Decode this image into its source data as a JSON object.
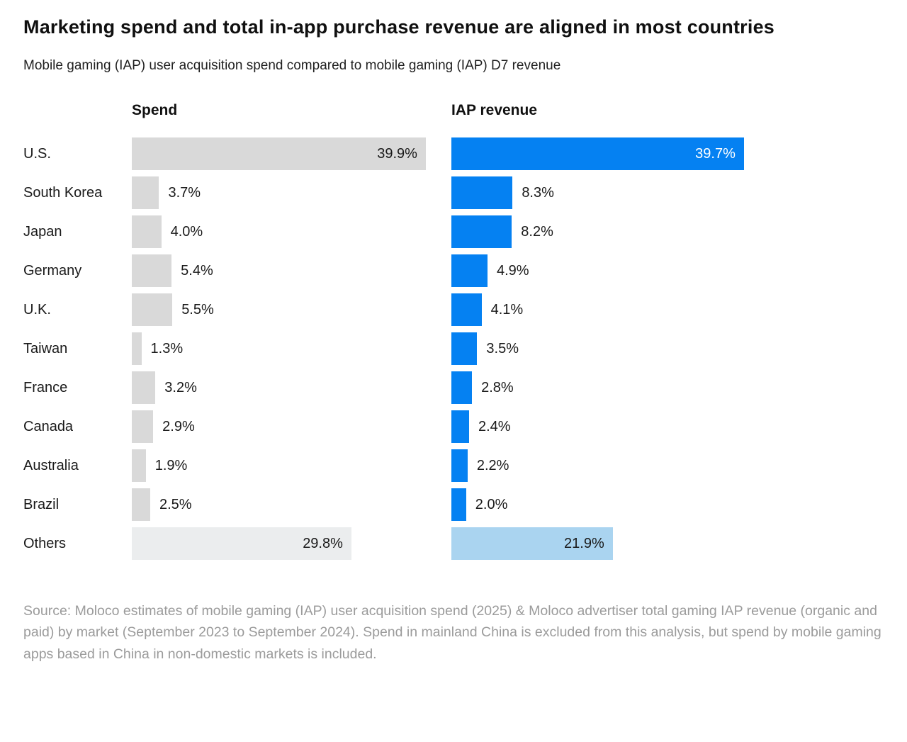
{
  "title": "Marketing spend and total in-app purchase revenue are aligned in most countries",
  "subtitle": "Mobile gaming (IAP) user acquisition spend compared to mobile gaming (IAP) D7 revenue",
  "source": "Source: Moloco estimates of mobile gaming (IAP) user acquisition spend (2025) & Moloco advertiser total gaming IAP revenue (organic and paid) by market (September 2023 to September 2024). Spend in mainland China is excluded from this analysis, but spend by mobile gaming apps based in China in non-domestic markets is included.",
  "colors": {
    "spend_bar": "#d9d9d9",
    "spend_bar_others": "#ebedee",
    "iap_bar": "#0581f2",
    "iap_bar_others": "#aad4f0",
    "text_dark": "#1a1a1a",
    "value_on_blue": "#ffffff",
    "source_text": "#9b9b9b"
  },
  "chart_data": {
    "type": "bar",
    "orientation": "horizontal",
    "title": "Marketing spend and total in-app purchase revenue are aligned in most countries",
    "subtitle": "Mobile gaming (IAP) user acquisition spend compared to mobile gaming (IAP) D7 revenue",
    "categories": [
      "U.S.",
      "South Korea",
      "Japan",
      "Germany",
      "U.K.",
      "Taiwan",
      "France",
      "Canada",
      "Australia",
      "Brazil",
      "Others"
    ],
    "series": [
      {
        "name": "Spend",
        "values": [
          39.9,
          3.7,
          4.0,
          5.4,
          5.5,
          1.3,
          3.2,
          2.9,
          1.9,
          2.5,
          29.8
        ],
        "labels": [
          "39.9%",
          "3.7%",
          "4.0%",
          "5.4%",
          "5.5%",
          "1.3%",
          "3.2%",
          "2.9%",
          "1.9%",
          "2.5%",
          "29.8%"
        ]
      },
      {
        "name": "IAP revenue",
        "values": [
          39.7,
          8.3,
          8.2,
          4.9,
          4.1,
          3.5,
          2.8,
          2.4,
          2.2,
          2.0,
          21.9
        ],
        "labels": [
          "39.7%",
          "8.3%",
          "8.2%",
          "4.9%",
          "4.1%",
          "3.5%",
          "2.8%",
          "2.4%",
          "2.2%",
          "2.0%",
          "21.9%"
        ]
      }
    ],
    "value_suffix": "%",
    "xlim": [
      0,
      40
    ],
    "grid": false,
    "legend_position": "column-headers",
    "value_inside_rows": [
      "U.S.",
      "Others"
    ],
    "others_row": "Others"
  }
}
